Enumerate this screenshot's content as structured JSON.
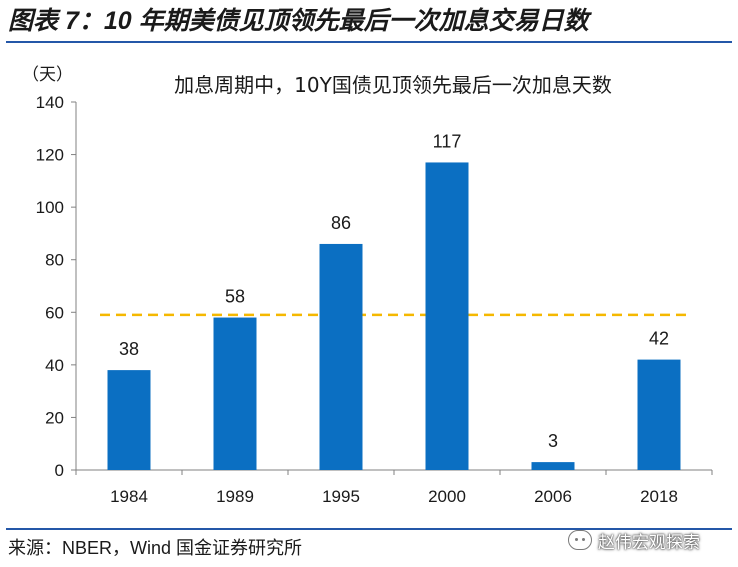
{
  "figure_title": "图表 7：10 年期美债见顶领先最后一次加息交易日数",
  "source": "来源：NBER，Wind 国金证券研究所",
  "watermark": "赵伟宏观探索",
  "colors": {
    "bar": "#0b6fc2",
    "reference_line": "#f5b800",
    "rule": "#2457a8",
    "axis": "#808080"
  },
  "chart_data": {
    "type": "bar",
    "title": "加息周期中，10Y国债见顶领先最后一次加息天数",
    "ylabel": "（天）",
    "xlabel": "",
    "categories": [
      "1984",
      "1989",
      "1995",
      "2000",
      "2006",
      "2018"
    ],
    "values": [
      38,
      58,
      86,
      117,
      3,
      42
    ],
    "ylim": [
      0,
      140
    ],
    "yticks": [
      0,
      20,
      40,
      60,
      80,
      100,
      120,
      140
    ],
    "reference_line": {
      "value": 59,
      "style": "dashed"
    },
    "grid": false
  }
}
